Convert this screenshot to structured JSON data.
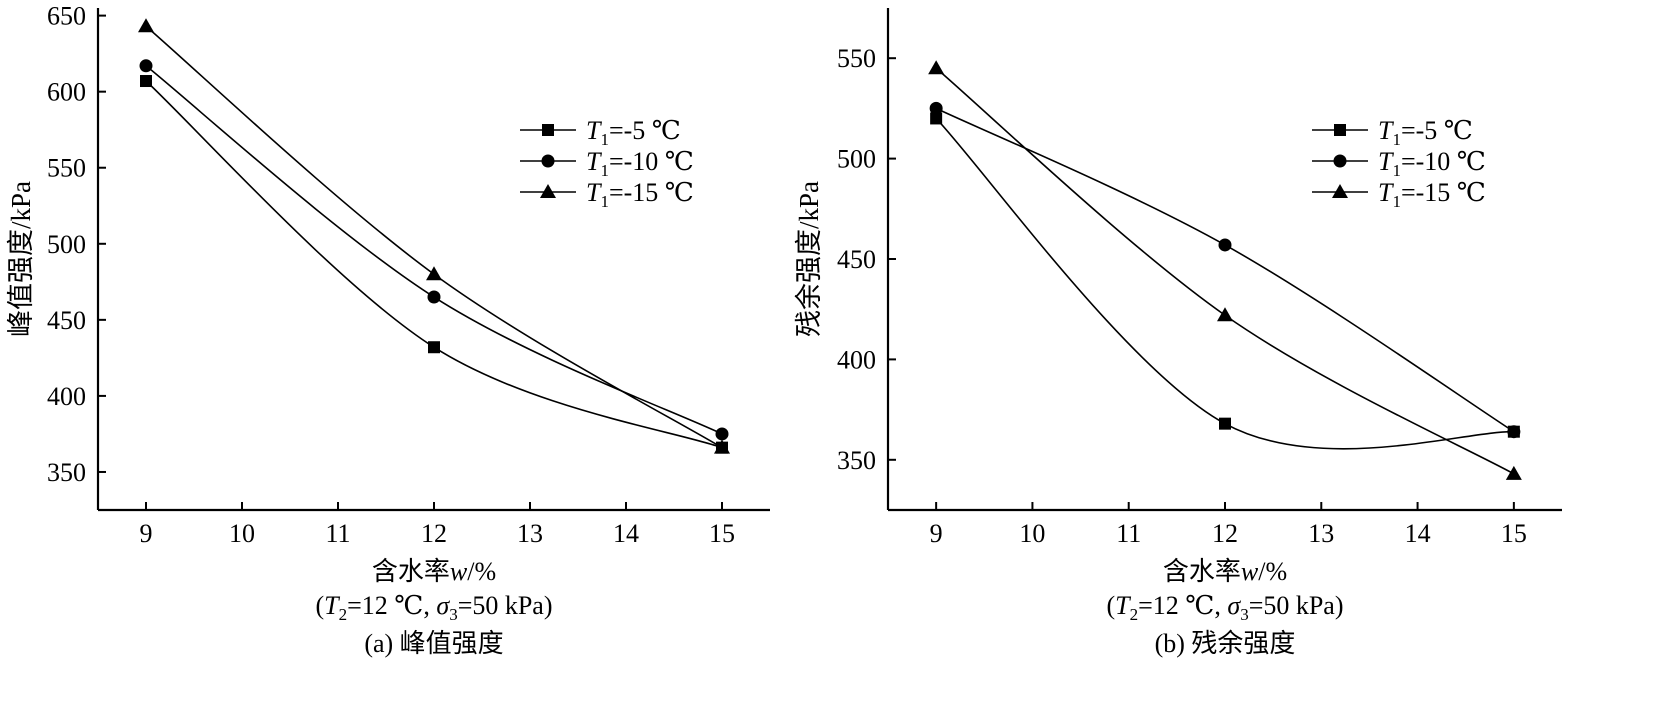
{
  "figure": {
    "panels": [
      {
        "caption": "(a) 峰值强度",
        "condition_parts": [
          "(",
          "T",
          "2",
          "=12 ℃, ",
          "σ",
          "3",
          "=50 kPa)"
        ],
        "xlabel_parts": [
          "含水率",
          "w",
          "/%"
        ],
        "ylabel": "峰值强度/kPa"
      },
      {
        "caption": "(b) 残余强度",
        "condition_parts": [
          "(",
          "T",
          "2",
          "=12 ℃, ",
          "σ",
          "3",
          "=50 kPa)"
        ],
        "xlabel_parts": [
          "含水率",
          "w",
          "/%"
        ],
        "ylabel": "残余强度/kPa"
      }
    ]
  },
  "legend": {
    "entries": [
      {
        "var": "T",
        "sub": "1",
        "rest": "=-5 ℃",
        "marker": "square"
      },
      {
        "var": "T",
        "sub": "1",
        "rest": "=-10 ℃",
        "marker": "circle"
      },
      {
        "var": "T",
        "sub": "1",
        "rest": "=-15 ℃",
        "marker": "triangle"
      }
    ]
  },
  "chart_data": [
    {
      "type": "line",
      "xlim": [
        8.5,
        15.5
      ],
      "ylim": [
        325,
        655
      ],
      "xticks": [
        9,
        10,
        11,
        12,
        13,
        14,
        15
      ],
      "yticks": [
        350,
        400,
        450,
        500,
        550,
        600,
        650
      ],
      "x": [
        9,
        12,
        15
      ],
      "series": [
        {
          "name": "T1=-5 ℃",
          "marker": "square",
          "values": [
            607,
            432,
            366
          ]
        },
        {
          "name": "T1=-10 ℃",
          "marker": "circle",
          "values": [
            617,
            465,
            375
          ]
        },
        {
          "name": "T1=-15 ℃",
          "marker": "triangle",
          "values": [
            643,
            480,
            366
          ]
        }
      ],
      "xlabel": "含水率w/%",
      "ylabel": "峰值强度/kPa",
      "grid": false,
      "legend_position": "upper-right"
    },
    {
      "type": "line",
      "xlim": [
        8.5,
        15.5
      ],
      "ylim": [
        325,
        575
      ],
      "xticks": [
        9,
        10,
        11,
        12,
        13,
        14,
        15
      ],
      "yticks": [
        350,
        400,
        450,
        500,
        550
      ],
      "x": [
        9,
        12,
        15
      ],
      "series": [
        {
          "name": "T1=-5 ℃",
          "marker": "square",
          "values": [
            520,
            368,
            364
          ]
        },
        {
          "name": "T1=-10 ℃",
          "marker": "circle",
          "values": [
            525,
            457,
            364
          ]
        },
        {
          "name": "T1=-15 ℃",
          "marker": "triangle",
          "values": [
            545,
            422,
            343
          ]
        }
      ],
      "xlabel": "含水率w/%",
      "ylabel": "残余强度/kPa",
      "grid": false,
      "legend_position": "upper-right"
    }
  ]
}
